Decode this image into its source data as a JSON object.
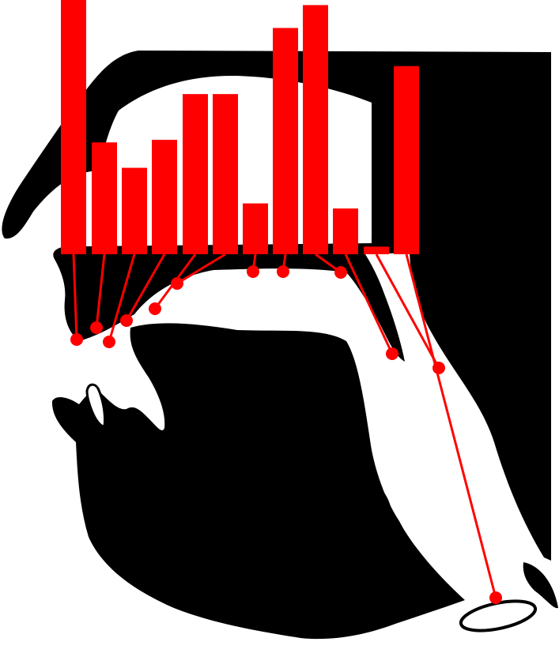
{
  "figure": {
    "colors": {
      "background": "#ffffff",
      "anatomy": "#000000",
      "bars": "#ff0000",
      "leaders": "#ff0000",
      "markers": "#ff0000"
    }
  },
  "chart_data": {
    "type": "bar",
    "title": "",
    "xlabel": "",
    "ylabel": "",
    "categories": [
      "",
      "",
      "",
      "",
      "",
      "",
      "",
      "",
      "",
      "",
      "",
      ""
    ],
    "values": [
      100,
      44,
      34,
      45,
      63,
      63,
      20,
      89,
      98,
      18,
      3,
      74
    ],
    "ylim": [
      0,
      100
    ],
    "grid": false,
    "legend": "none"
  }
}
